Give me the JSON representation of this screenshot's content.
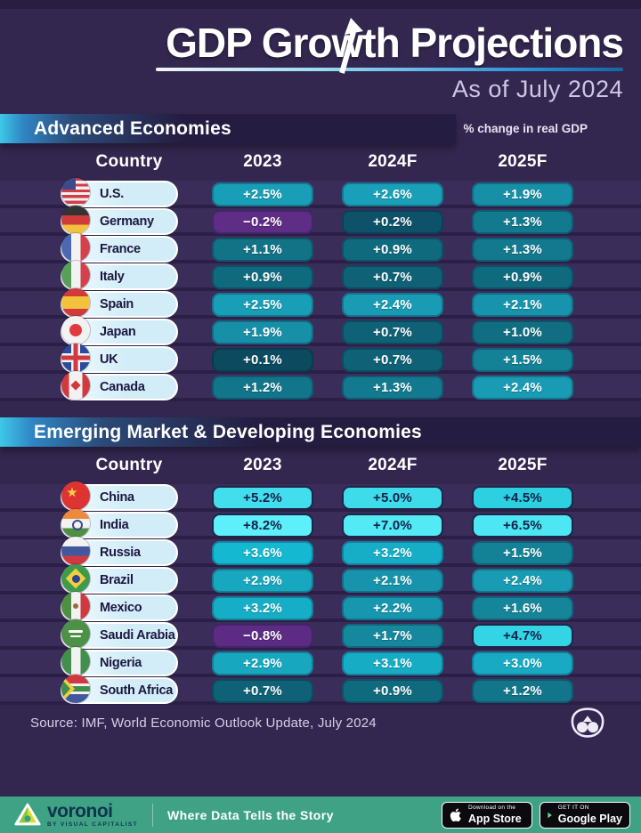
{
  "page": {
    "title": "GDP Growth Projections",
    "subtitle": "As of July 2024",
    "unit_note": "% change in real GDP"
  },
  "columns": [
    "Country",
    "2023",
    "2024F",
    "2025F"
  ],
  "chart_data": {
    "type": "table",
    "title": "GDP Growth Projections",
    "subtitle": "As of July 2024",
    "unit": "% change in real GDP",
    "value_columns": [
      "2023",
      "2024F",
      "2025F"
    ],
    "groups": [
      {
        "name": "Advanced Economies",
        "rows": [
          {
            "country": "U.S.",
            "flag": "us",
            "values": [
              2.5,
              2.6,
              1.9
            ]
          },
          {
            "country": "Germany",
            "flag": "de",
            "values": [
              -0.2,
              0.2,
              1.3
            ]
          },
          {
            "country": "France",
            "flag": "fr",
            "values": [
              1.1,
              0.9,
              1.3
            ]
          },
          {
            "country": "Italy",
            "flag": "it",
            "values": [
              0.9,
              0.7,
              0.9
            ]
          },
          {
            "country": "Spain",
            "flag": "es",
            "values": [
              2.5,
              2.4,
              2.1
            ]
          },
          {
            "country": "Japan",
            "flag": "jp",
            "values": [
              1.9,
              0.7,
              1.0
            ]
          },
          {
            "country": "UK",
            "flag": "uk",
            "values": [
              0.1,
              0.7,
              1.5
            ]
          },
          {
            "country": "Canada",
            "flag": "ca",
            "values": [
              1.2,
              1.3,
              2.4
            ]
          }
        ]
      },
      {
        "name": "Emerging Market & Developing Economies",
        "rows": [
          {
            "country": "China",
            "flag": "cn",
            "values": [
              5.2,
              5.0,
              4.5
            ]
          },
          {
            "country": "India",
            "flag": "in",
            "values": [
              8.2,
              7.0,
              6.5
            ]
          },
          {
            "country": "Russia",
            "flag": "ru",
            "values": [
              3.6,
              3.2,
              1.5
            ]
          },
          {
            "country": "Brazil",
            "flag": "br",
            "values": [
              2.9,
              2.1,
              2.4
            ]
          },
          {
            "country": "Mexico",
            "flag": "mx",
            "values": [
              3.2,
              2.2,
              1.6
            ]
          },
          {
            "country": "Saudi Arabia",
            "flag": "sa",
            "values": [
              -0.8,
              1.7,
              4.7
            ]
          },
          {
            "country": "Nigeria",
            "flag": "ng",
            "values": [
              2.9,
              3.1,
              3.0
            ]
          },
          {
            "country": "South Africa",
            "flag": "za",
            "values": [
              0.7,
              0.9,
              1.2
            ]
          }
        ]
      }
    ],
    "source": "Source: IMF, World Economic Outlook Update, July 2024"
  },
  "style": {
    "dark_text_min": 4.5,
    "dark_text_color": "#142247",
    "value_colors": {
      "-0.8": "#5c2b84",
      "-0.2": "#5e2d86",
      "0.1": "#0b4a5f",
      "0.2": "#0d5268",
      "0.7": "#0f6175",
      "0.9": "#106a7e",
      "1.0": "#116e82",
      "1.1": "#127286",
      "1.2": "#12758a",
      "1.3": "#13798e",
      "1.5": "#148296",
      "1.6": "#15859a",
      "1.7": "#15889d",
      "1.9": "#168fa7",
      "2.1": "#1794ac",
      "2.2": "#1796af",
      "2.4": "#189bb3",
      "2.5": "#189eb6",
      "2.6": "#19a0b8",
      "2.9": "#17a8c0",
      "3.0": "#17aac2",
      "3.1": "#16acc4",
      "3.2": "#16aec7",
      "3.6": "#14b8d1",
      "4.5": "#2dd0e0",
      "4.7": "#33d5e5",
      "5.0": "#3edceb",
      "5.2": "#43deee",
      "6.5": "#4de6f3",
      "7.0": "#53eaf6",
      "8.2": "#5df0fb"
    },
    "accent_green": "#3fa285",
    "background": "#332750",
    "row_band": "#3b2d59"
  },
  "footer": {
    "brand": "voronoi",
    "brand_sub": "BY VISUAL CAPITALIST",
    "tagline": "Where Data Tells the Story",
    "badges": [
      {
        "line1": "Download on the",
        "line2": "App Store"
      },
      {
        "line1": "GET IT ON",
        "line2": "Google Play"
      }
    ]
  }
}
